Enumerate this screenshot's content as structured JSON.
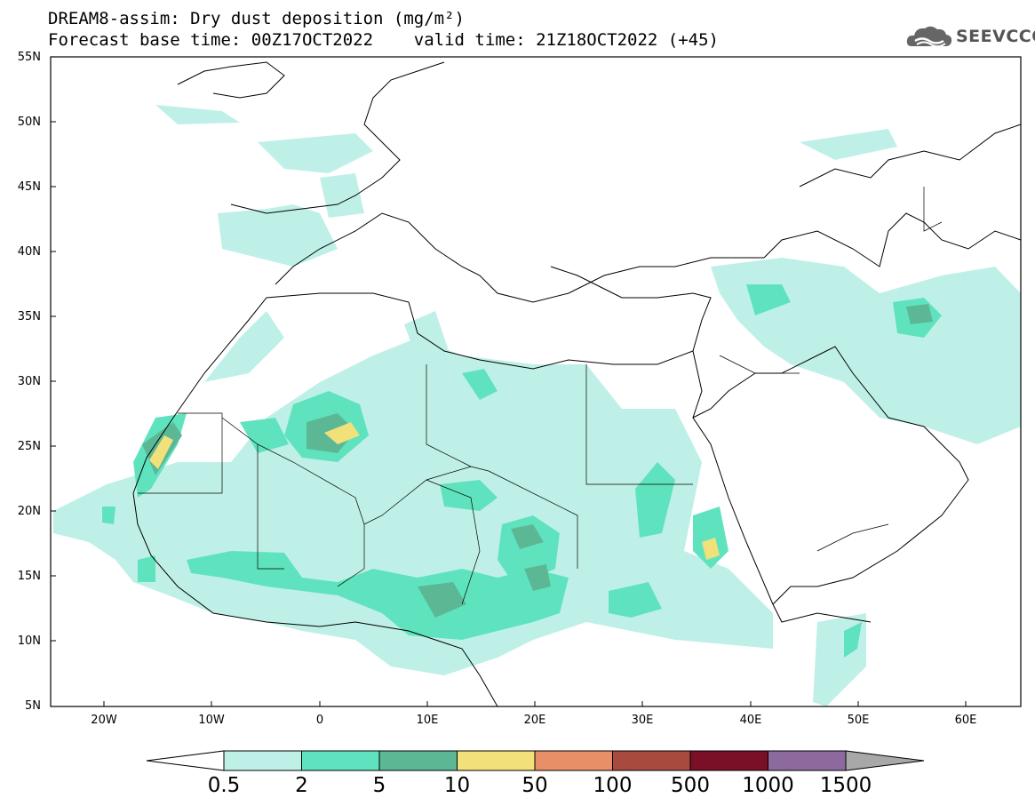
{
  "title": {
    "line1": "DREAM8-assim: Dry dust deposition (mg/m²)",
    "line2": "Forecast base time: 00Z17OCT2022    valid time: 21Z18OCT2022 (+45)"
  },
  "logo": {
    "text": "SEEVCCC",
    "icon": "cloud-icon"
  },
  "map": {
    "lat_labels": [
      "55N",
      "50N",
      "45N",
      "40N",
      "35N",
      "30N",
      "25N",
      "20N",
      "15N",
      "10N",
      "5N"
    ],
    "lon_labels": [
      "20W",
      "10W",
      "0",
      "10E",
      "20E",
      "30E",
      "40E",
      "50E",
      "60E"
    ],
    "lat_range": [
      5,
      55
    ],
    "lon_range": [
      -25,
      65
    ]
  },
  "legend": {
    "labels": [
      "0.5",
      "2",
      "5",
      "10",
      "50",
      "100",
      "500",
      "1000",
      "1500"
    ],
    "colors": [
      "#bff0e8",
      "#5fe3bf",
      "#5cb894",
      "#f2e07a",
      "#e98f68",
      "#a84a3d",
      "#7a0f28",
      "#8c6a9e",
      "#a8a8a8"
    ]
  }
}
